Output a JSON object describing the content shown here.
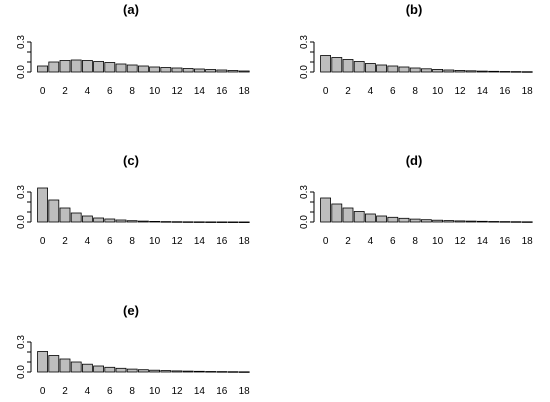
{
  "chart_data": [
    {
      "type": "bar",
      "title": "(a)",
      "categories": [
        0,
        1,
        2,
        3,
        4,
        5,
        6,
        7,
        8,
        9,
        10,
        11,
        12,
        13,
        14,
        15,
        16,
        17,
        18
      ],
      "x_tick_labels": [
        "0",
        "2",
        "4",
        "6",
        "8",
        "10",
        "12",
        "14",
        "16",
        "18"
      ],
      "values": [
        0.06,
        0.1,
        0.115,
        0.12,
        0.115,
        0.105,
        0.095,
        0.08,
        0.07,
        0.06,
        0.05,
        0.045,
        0.04,
        0.035,
        0.03,
        0.025,
        0.02,
        0.015,
        0.01
      ],
      "y_tick_labels": [
        "0.0",
        "0.3"
      ],
      "ylim": [
        0,
        0.35
      ],
      "xlabel": "",
      "ylabel": ""
    },
    {
      "type": "bar",
      "title": "(b)",
      "categories": [
        0,
        1,
        2,
        3,
        4,
        5,
        6,
        7,
        8,
        9,
        10,
        11,
        12,
        13,
        14,
        15,
        16,
        17,
        18
      ],
      "x_tick_labels": [
        "0",
        "2",
        "4",
        "6",
        "8",
        "10",
        "12",
        "14",
        "16",
        "18"
      ],
      "values": [
        0.165,
        0.145,
        0.125,
        0.105,
        0.085,
        0.07,
        0.06,
        0.05,
        0.04,
        0.032,
        0.026,
        0.02,
        0.016,
        0.012,
        0.009,
        0.007,
        0.005,
        0.004,
        0.003
      ],
      "y_tick_labels": [
        "0.0",
        "0.3"
      ],
      "ylim": [
        0,
        0.35
      ],
      "xlabel": "",
      "ylabel": ""
    },
    {
      "type": "bar",
      "title": "(c)",
      "categories": [
        0,
        1,
        2,
        3,
        4,
        5,
        6,
        7,
        8,
        9,
        10,
        11,
        12,
        13,
        14,
        15,
        16,
        17,
        18
      ],
      "x_tick_labels": [
        "0",
        "2",
        "4",
        "6",
        "8",
        "10",
        "12",
        "14",
        "16",
        "18"
      ],
      "values": [
        0.34,
        0.22,
        0.14,
        0.09,
        0.06,
        0.04,
        0.03,
        0.02,
        0.013,
        0.009,
        0.006,
        0.004,
        0.003,
        0.002,
        0.0015,
        0.001,
        0.0008,
        0.0006,
        0.0004
      ],
      "y_tick_labels": [
        "0.0",
        "0.3"
      ],
      "ylim": [
        0,
        0.35
      ],
      "xlabel": "",
      "ylabel": ""
    },
    {
      "type": "bar",
      "title": "(d)",
      "categories": [
        0,
        1,
        2,
        3,
        4,
        5,
        6,
        7,
        8,
        9,
        10,
        11,
        12,
        13,
        14,
        15,
        16,
        17,
        18
      ],
      "x_tick_labels": [
        "0",
        "2",
        "4",
        "6",
        "8",
        "10",
        "12",
        "14",
        "16",
        "18"
      ],
      "values": [
        0.24,
        0.18,
        0.14,
        0.105,
        0.08,
        0.06,
        0.047,
        0.037,
        0.029,
        0.023,
        0.018,
        0.014,
        0.011,
        0.009,
        0.007,
        0.005,
        0.004,
        0.003,
        0.002
      ],
      "y_tick_labels": [
        "0.0",
        "0.3"
      ],
      "ylim": [
        0,
        0.35
      ],
      "xlabel": "",
      "ylabel": ""
    },
    {
      "type": "bar",
      "title": "(e)",
      "categories": [
        0,
        1,
        2,
        3,
        4,
        5,
        6,
        7,
        8,
        9,
        10,
        11,
        12,
        13,
        14,
        15,
        16,
        17,
        18
      ],
      "x_tick_labels": [
        "0",
        "2",
        "4",
        "6",
        "8",
        "10",
        "12",
        "14",
        "16",
        "18"
      ],
      "values": [
        0.205,
        0.165,
        0.13,
        0.1,
        0.078,
        0.06,
        0.047,
        0.037,
        0.029,
        0.023,
        0.018,
        0.014,
        0.011,
        0.009,
        0.007,
        0.005,
        0.004,
        0.003,
        0.002
      ],
      "y_tick_labels": [
        "0.0",
        "0.3"
      ],
      "ylim": [
        0,
        0.35
      ],
      "xlabel": "",
      "ylabel": ""
    }
  ]
}
